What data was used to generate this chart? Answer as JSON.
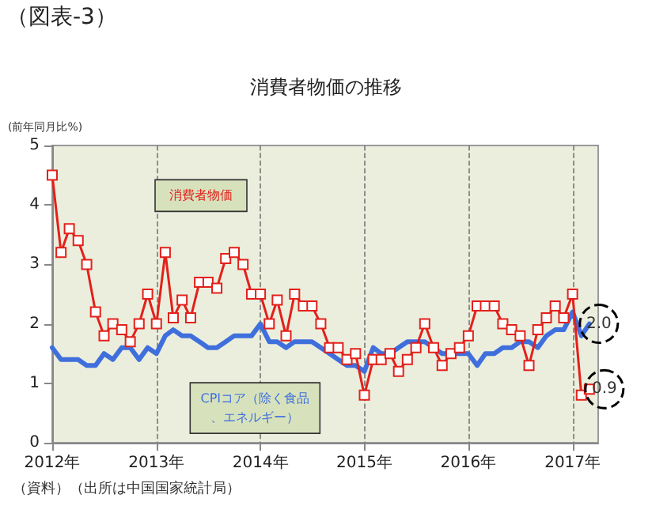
{
  "chart_data": {
    "type": "line",
    "title": "消費者物価の推移",
    "ylabel": "(前年同月比%)",
    "annotations": [
      "（図表-3）",
      "（資料）（出所は中国国家統計局）"
    ],
    "x": [
      "2012-01",
      "2012-02",
      "2012-03",
      "2012-04",
      "2012-05",
      "2012-06",
      "2012-07",
      "2012-08",
      "2012-09",
      "2012-10",
      "2012-11",
      "2012-12",
      "2013-01",
      "2013-02",
      "2013-03",
      "2013-04",
      "2013-05",
      "2013-06",
      "2013-07",
      "2013-08",
      "2013-09",
      "2013-10",
      "2013-11",
      "2013-12",
      "2014-01",
      "2014-02",
      "2014-03",
      "2014-04",
      "2014-05",
      "2014-06",
      "2014-07",
      "2014-08",
      "2014-09",
      "2014-10",
      "2014-11",
      "2014-12",
      "2015-01",
      "2015-02",
      "2015-03",
      "2015-04",
      "2015-05",
      "2015-06",
      "2015-07",
      "2015-08",
      "2015-09",
      "2015-10",
      "2015-11",
      "2015-12",
      "2016-01",
      "2016-02",
      "2016-03",
      "2016-04",
      "2016-05",
      "2016-06",
      "2016-07",
      "2016-08",
      "2016-09",
      "2016-10",
      "2016-11",
      "2016-12",
      "2017-01",
      "2017-02",
      "2017-03"
    ],
    "series": [
      {
        "name": "消費者物価",
        "color": "#e3201b",
        "marker": "square",
        "values": [
          4.5,
          3.2,
          3.6,
          3.4,
          3.0,
          2.2,
          1.8,
          2.0,
          1.9,
          1.7,
          2.0,
          2.5,
          2.0,
          3.2,
          2.1,
          2.4,
          2.1,
          2.7,
          2.7,
          2.6,
          3.1,
          3.2,
          3.0,
          2.5,
          2.5,
          2.0,
          2.4,
          1.8,
          2.5,
          2.3,
          2.3,
          2.0,
          1.6,
          1.6,
          1.4,
          1.5,
          0.8,
          1.4,
          1.4,
          1.5,
          1.2,
          1.4,
          1.6,
          2.0,
          1.6,
          1.3,
          1.5,
          1.6,
          1.8,
          2.3,
          2.3,
          2.3,
          2.0,
          1.9,
          1.8,
          1.3,
          1.9,
          2.1,
          2.3,
          2.1,
          2.5,
          0.8,
          0.9
        ],
        "value_labels": [
          null,
          null,
          null,
          null,
          null,
          null,
          null,
          null,
          null,
          null,
          null,
          null,
          null,
          null,
          null,
          null,
          null,
          null,
          null,
          null,
          null,
          null,
          null,
          null,
          null,
          null,
          null,
          null,
          null,
          null,
          null,
          null,
          null,
          null,
          null,
          null,
          null,
          null,
          null,
          null,
          null,
          null,
          null,
          null,
          null,
          null,
          null,
          null,
          null,
          null,
          null,
          null,
          null,
          null,
          null,
          null,
          null,
          null,
          null,
          null,
          null,
          null,
          "0.9"
        ]
      },
      {
        "name": "CPIコア（除く食品、エネルギー）",
        "color": "#3f6fdc",
        "marker": "none",
        "values": [
          1.6,
          1.4,
          1.4,
          1.4,
          1.3,
          1.3,
          1.5,
          1.4,
          1.6,
          1.6,
          1.4,
          1.6,
          1.5,
          1.8,
          1.9,
          1.8,
          1.8,
          1.7,
          1.6,
          1.6,
          1.7,
          1.8,
          1.8,
          1.8,
          2.0,
          1.7,
          1.7,
          1.6,
          1.7,
          1.7,
          1.7,
          1.6,
          1.5,
          1.4,
          1.3,
          1.3,
          1.2,
          1.6,
          1.5,
          1.5,
          1.6,
          1.7,
          1.7,
          1.7,
          1.6,
          1.5,
          1.5,
          1.5,
          1.5,
          1.3,
          1.5,
          1.5,
          1.6,
          1.6,
          1.7,
          1.7,
          1.6,
          1.8,
          1.9,
          1.9,
          2.2,
          1.8,
          2.0
        ],
        "value_labels": [
          null,
          null,
          null,
          null,
          null,
          null,
          null,
          null,
          null,
          null,
          null,
          null,
          null,
          null,
          null,
          null,
          null,
          null,
          null,
          null,
          null,
          null,
          null,
          null,
          null,
          null,
          null,
          null,
          null,
          null,
          null,
          null,
          null,
          null,
          null,
          null,
          null,
          null,
          null,
          null,
          null,
          null,
          null,
          null,
          null,
          null,
          null,
          null,
          null,
          null,
          null,
          null,
          null,
          null,
          null,
          null,
          null,
          null,
          null,
          null,
          null,
          null,
          "2.0"
        ]
      }
    ],
    "xlim": [
      "2012-01",
      "2017-04"
    ],
    "xticks": [
      {
        "value": "2012-01",
        "label": "2012年"
      },
      {
        "value": "2013-01",
        "label": "2013年"
      },
      {
        "value": "2014-01",
        "label": "2014年"
      },
      {
        "value": "2015-01",
        "label": "2015年"
      },
      {
        "value": "2016-01",
        "label": "2016年"
      },
      {
        "value": "2017-01",
        "label": "2017年"
      }
    ],
    "ylim": [
      0,
      5
    ],
    "yticks": [
      0,
      1,
      2,
      3,
      4,
      5
    ],
    "grid": "x",
    "legend": false
  }
}
